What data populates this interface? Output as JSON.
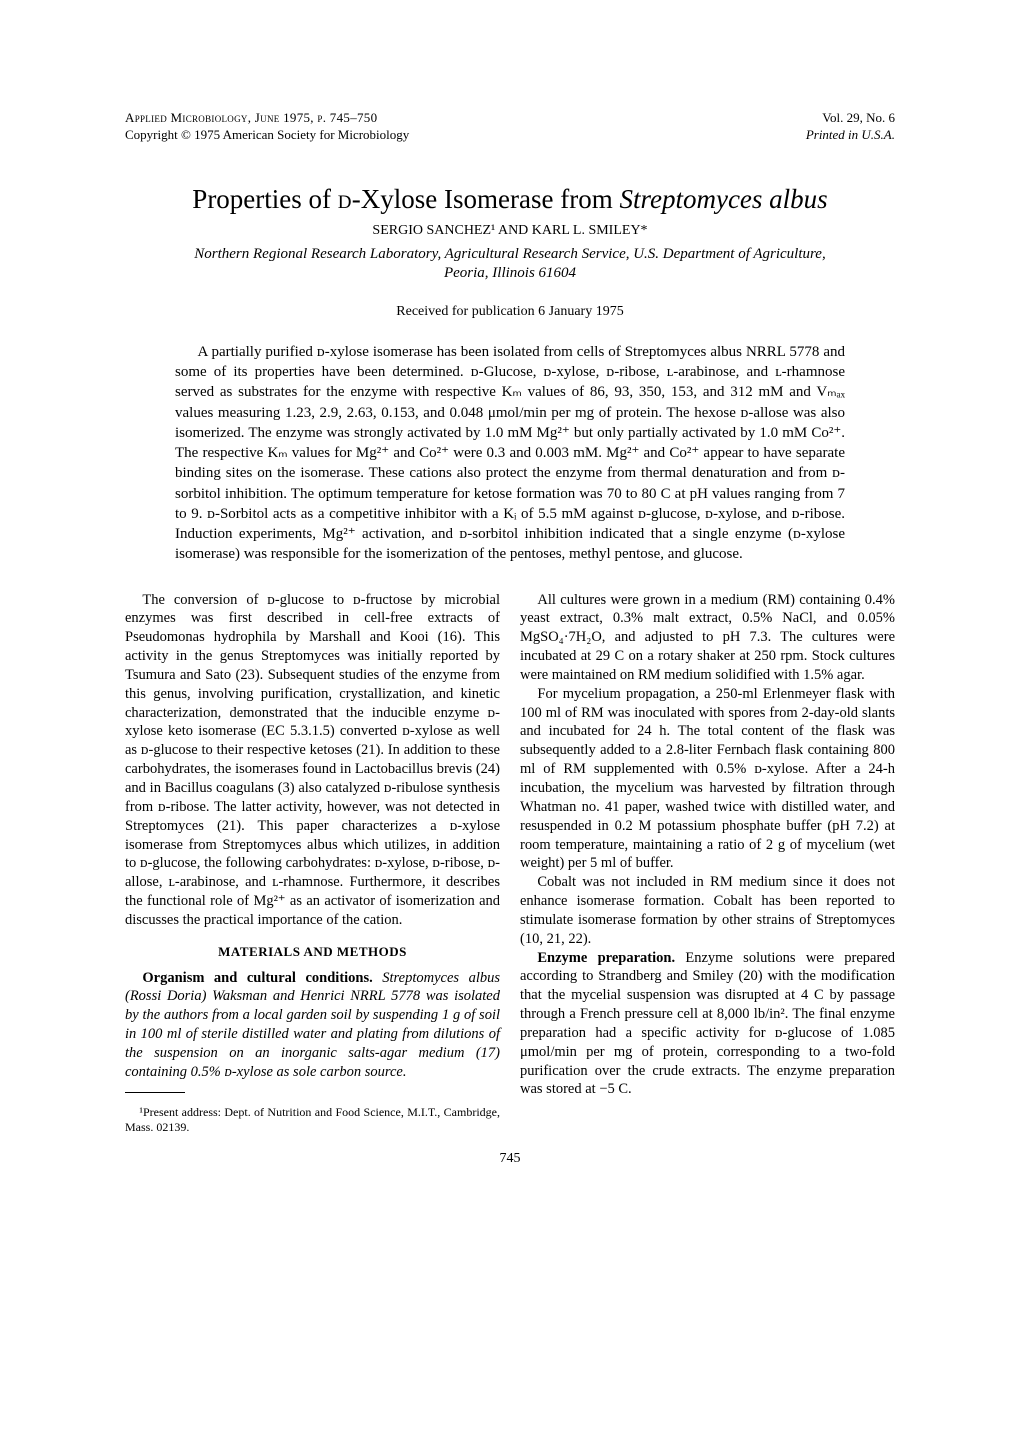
{
  "header": {
    "journal_line": "Applied Microbiology, June 1975, p. 745–750",
    "copyright_line": "Copyright © 1975 American Society for Microbiology",
    "volume_issue": "Vol. 29, No. 6",
    "printed": "Printed in U.S.A."
  },
  "title_pre": "Properties of ",
  "title_sc": "d",
  "title_mid": "-Xylose Isomerase from ",
  "title_species": "Streptomyces albus",
  "authors": "SERGIO SANCHEZ¹ AND KARL L. SMILEY*",
  "affiliation_line1": "Northern Regional Research Laboratory, Agricultural Research Service, U.S. Department of Agriculture,",
  "affiliation_line2": "Peoria, Illinois 61604",
  "received": "Received for publication 6 January 1975",
  "abstract": "A partially purified ᴅ-xylose isomerase has been isolated from cells of Streptomyces albus NRRL 5778 and some of its properties have been determined. ᴅ-Glucose, ᴅ-xylose, ᴅ-ribose, ʟ-arabinose, and ʟ-rhamnose served as substrates for the enzyme with respective Kₘ values of 86, 93, 350, 153, and 312 mM and Vₘₐₓ values measuring 1.23, 2.9, 2.63, 0.153, and 0.048 μmol/min per mg of protein. The hexose ᴅ-allose was also isomerized. The enzyme was strongly activated by 1.0 mM Mg²⁺ but only partially activated by 1.0 mM Co²⁺. The respective Kₘ values for Mg²⁺ and Co²⁺ were 0.3 and 0.003 mM. Mg²⁺ and Co²⁺ appear to have separate binding sites on the isomerase. These cations also protect the enzyme from thermal denaturation and from ᴅ-sorbitol inhibition. The optimum temperature for ketose formation was 70 to 80 C at pH values ranging from 7 to 9. ᴅ-Sorbitol acts as a competitive inhibitor with a Kᵢ of 5.5 mM against ᴅ-glucose, ᴅ-xylose, and ᴅ-ribose. Induction experiments, Mg²⁺ activation, and ᴅ-sorbitol inhibition indicated that a single enzyme (ᴅ-xylose isomerase) was responsible for the isomerization of the pentoses, methyl pentose, and glucose.",
  "body": {
    "intro_p1": "The conversion of ᴅ-glucose to ᴅ-fructose by microbial enzymes was first described in cell-free extracts of Pseudomonas hydrophila by Marshall and Kooi (16). This activity in the genus Streptomyces was initially reported by Tsumura and Sato (23). Subsequent studies of the enzyme from this genus, involving purification, crystallization, and kinetic characterization, demonstrated that the inducible enzyme ᴅ-xylose keto isomerase (EC 5.3.1.5) converted ᴅ-xylose as well as ᴅ-glucose to their respective ketoses (21). In addition to these carbohydrates, the isomerases found in Lactobacillus brevis (24) and in Bacillus coagulans (3) also catalyzed ᴅ-ribulose synthesis from ᴅ-ribose. The latter activity, however, was not detected in Streptomyces (21). This paper characterizes a ᴅ-xylose isomerase from Streptomyces albus which utilizes, in addition to ᴅ-glucose, the following carbohydrates: ᴅ-xylose, ᴅ-ribose, ᴅ-allose, ʟ-arabinose, and ʟ-rhamnose. Furthermore, it describes the functional role of Mg²⁺ as an activator of isomerization and discusses the practical importance of the cation.",
    "materials_heading": "MATERIALS AND METHODS",
    "organism_heading": "Organism and cultural conditions.",
    "organism_text": " Streptomyces albus (Rossi Doria) Waksman and Henrici NRRL 5778 was isolated by the authors from a local garden soil by suspending 1 g of soil in 100 ml of sterile distilled water and plating from dilutions of the suspension on an inorganic salts-agar medium (17) containing 0.5% ᴅ-xylose as sole carbon source.",
    "cultures_p1": "All cultures were grown in a medium (RM) containing 0.4% yeast extract, 0.3% malt extract, 0.5% NaCl, and 0.05% MgSO₄·7H₂O, and adjusted to pH 7.3. The cultures were incubated at 29 C on a rotary shaker at 250 rpm. Stock cultures were maintained on RM medium solidified with 1.5% agar.",
    "cultures_p2": "For mycelium propagation, a 250-ml Erlenmeyer flask with 100 ml of RM was inoculated with spores from 2-day-old slants and incubated for 24 h. The total content of the flask was subsequently added to a 2.8-liter Fernbach flask containing 800 ml of RM supplemented with 0.5% ᴅ-xylose. After a 24-h incubation, the mycelium was harvested by filtration through Whatman no. 41 paper, washed twice with distilled water, and resuspended in 0.2 M potassium phosphate buffer (pH 7.2) at room temperature, maintaining a ratio of 2 g of mycelium (wet weight) per 5 ml of buffer.",
    "cultures_p3": "Cobalt was not included in RM medium since it does not enhance isomerase formation. Cobalt has been reported to stimulate isomerase formation by other strains of Streptomyces (10, 21, 22).",
    "enzyme_heading": "Enzyme preparation.",
    "enzyme_text": " Enzyme solutions were prepared according to Strandberg and Smiley (20) with the modification that the mycelial suspension was disrupted at 4 C by passage through a French pressure cell at 8,000 lb/in². The final enzyme preparation had a specific activity for ᴅ-glucose of 1.085 μmol/min per mg of protein, corresponding to a two-fold purification over the crude extracts. The enzyme preparation was stored at −5 C."
  },
  "footnote": "¹Present address: Dept. of Nutrition and Food Science, M.I.T., Cambridge, Mass. 02139.",
  "page_number": "745"
}
